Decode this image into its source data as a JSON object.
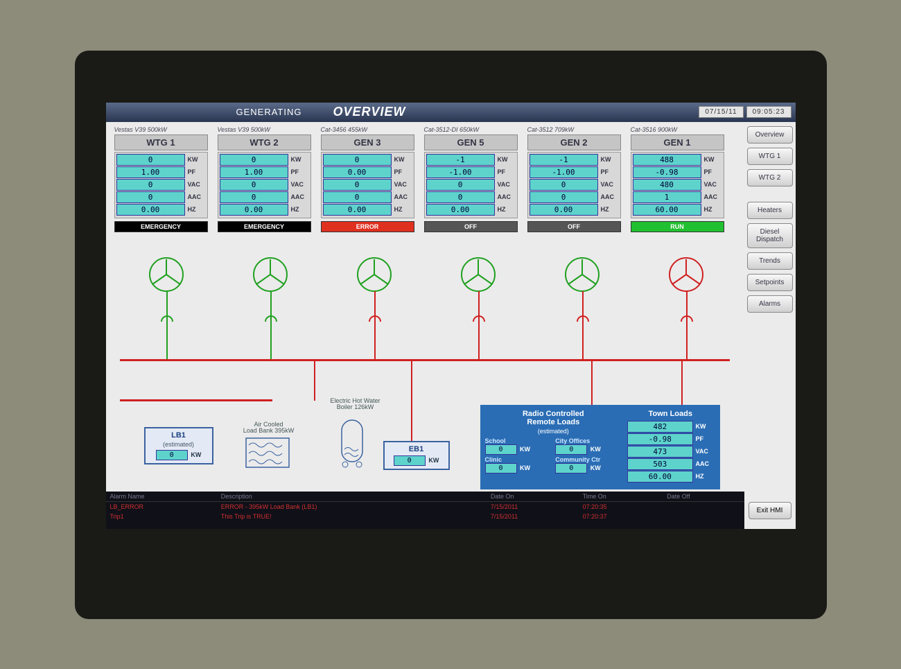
{
  "header": {
    "generating": "GENERATING",
    "overview": "OVERVIEW",
    "date": "07/15/11",
    "time": "09:05:23"
  },
  "nav": {
    "buttons": [
      "Overview",
      "WTG 1",
      "WTG 2",
      "Heaters",
      "Diesel Dispatch",
      "Trends",
      "Setpoints",
      "Alarms"
    ],
    "exit": "Exit HMI"
  },
  "gens": [
    {
      "sub": "Vestas V39 500kW",
      "title": "WTG 1",
      "kw": "0",
      "pf": "1.00",
      "vac": "0",
      "aac": "0",
      "hz": "0.00",
      "status": "EMERGENCY",
      "status_cls": "emergency",
      "turbine_color": "#20a020"
    },
    {
      "sub": "Vestas V39 500kW",
      "title": "WTG 2",
      "kw": "0",
      "pf": "1.00",
      "vac": "0",
      "aac": "0",
      "hz": "0.00",
      "status": "EMERGENCY",
      "status_cls": "emergency",
      "turbine_color": "#20a020"
    },
    {
      "sub": "Cat-3456 455kW",
      "title": "GEN 3",
      "kw": "0",
      "pf": "0.00",
      "vac": "0",
      "aac": "0",
      "hz": "0.00",
      "status": "ERROR",
      "status_cls": "error",
      "turbine_color": "#20a020"
    },
    {
      "sub": "Cat-3512-DI 650kW",
      "title": "GEN 5",
      "kw": "-1",
      "pf": "-1.00",
      "vac": "0",
      "aac": "0",
      "hz": "0.00",
      "status": "OFF",
      "status_cls": "off",
      "turbine_color": "#20a020"
    },
    {
      "sub": "Cat-3512 709kW",
      "title": "GEN 2",
      "kw": "-1",
      "pf": "-1.00",
      "vac": "0",
      "aac": "0",
      "hz": "0.00",
      "status": "OFF",
      "status_cls": "off",
      "turbine_color": "#20a020"
    },
    {
      "sub": "Cat-3516 900kW",
      "title": "GEN 1",
      "kw": "488",
      "pf": "-0.98",
      "vac": "480",
      "aac": "1",
      "hz": "60.00",
      "status": "RUN",
      "status_cls": "run",
      "turbine_color": "#d02020"
    }
  ],
  "units": {
    "kw": "KW",
    "pf": "PF",
    "vac": "VAC",
    "aac": "AAC",
    "hz": "HZ"
  },
  "lb1": {
    "title": "LB1",
    "sub": "(estimated)",
    "val": "0",
    "unit": "KW"
  },
  "eb1": {
    "title": "EB1",
    "val": "0",
    "unit": "KW"
  },
  "loadbank_label": "Air Cooled\nLoad Bank 395kW",
  "boiler_label": "Electric Hot Water\nBoiler 126kW",
  "remote": {
    "title": "Radio Controlled Remote Loads",
    "sub": "(estimated)",
    "items": [
      {
        "label": "School",
        "val": "0",
        "unit": "KW"
      },
      {
        "label": "City Offices",
        "val": "0",
        "unit": "KW"
      },
      {
        "label": "Clinic",
        "val": "0",
        "unit": "KW"
      },
      {
        "label": "Community Ctr",
        "val": "0",
        "unit": "KW"
      }
    ]
  },
  "town": {
    "title": "Town Loads",
    "kw": "482",
    "pf": "-0.98",
    "vac": "473",
    "aac": "503",
    "hz": "60.00"
  },
  "alarm_table": {
    "headers": [
      "Alarm Name",
      "Description",
      "Date On",
      "Time On",
      "Date Off"
    ],
    "rows": [
      {
        "name": "LB_ERROR",
        "desc": "ERROR - 395kW Load Bank (LB1)",
        "date": "7/15/2011",
        "time": "07:20:35",
        "off": ""
      },
      {
        "name": "Trip1",
        "desc": "This Trip is TRUE!",
        "date": "7/15/2011",
        "time": "07:20:37",
        "off": ""
      }
    ]
  },
  "colors": {
    "readout_bg": "#5dd3cc",
    "bus_red": "#d02020",
    "line_green": "#20a020",
    "panel_blue": "#2a6db5"
  }
}
